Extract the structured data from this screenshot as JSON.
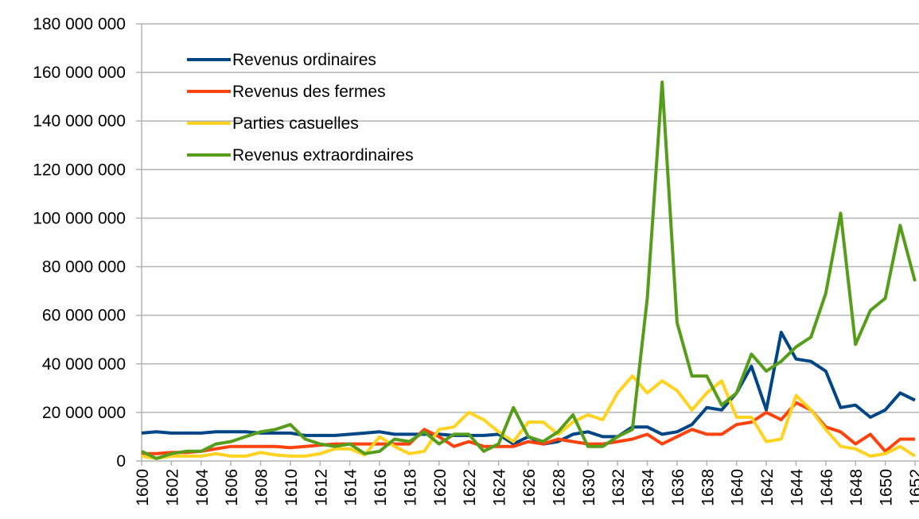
{
  "chart_data": {
    "type": "line",
    "x": [
      1600,
      1601,
      1602,
      1603,
      1604,
      1605,
      1606,
      1607,
      1608,
      1609,
      1610,
      1611,
      1612,
      1613,
      1614,
      1615,
      1616,
      1617,
      1618,
      1619,
      1620,
      1621,
      1622,
      1623,
      1624,
      1625,
      1626,
      1627,
      1628,
      1629,
      1630,
      1631,
      1632,
      1633,
      1634,
      1635,
      1636,
      1637,
      1638,
      1639,
      1640,
      1641,
      1642,
      1643,
      1644,
      1645,
      1646,
      1647,
      1648,
      1649,
      1650,
      1651,
      1652
    ],
    "xlim": [
      1600,
      1652
    ],
    "xticks": [
      1600,
      1602,
      1604,
      1606,
      1608,
      1610,
      1612,
      1614,
      1616,
      1618,
      1620,
      1622,
      1624,
      1626,
      1628,
      1630,
      1632,
      1634,
      1636,
      1638,
      1640,
      1642,
      1644,
      1646,
      1648,
      1650,
      1652
    ],
    "ylim": [
      0,
      180000000
    ],
    "yticks": [
      {
        "value": 0,
        "label": "0"
      },
      {
        "value": 20000000,
        "label": "20 000 000"
      },
      {
        "value": 40000000,
        "label": "40 000 000"
      },
      {
        "value": 60000000,
        "label": "60 000 000"
      },
      {
        "value": 80000000,
        "label": "80 000 000"
      },
      {
        "value": 100000000,
        "label": "100 000 000"
      },
      {
        "value": 120000000,
        "label": "120 000 000"
      },
      {
        "value": 140000000,
        "label": "140 000 000"
      },
      {
        "value": 160000000,
        "label": "160 000 000"
      },
      {
        "value": 180000000,
        "label": "180 000 000"
      }
    ],
    "grid": true,
    "legend": "upper-left",
    "series": [
      {
        "name": "Revenus ordinaires",
        "color": "#004586",
        "values": [
          11500000,
          12000000,
          11500000,
          11500000,
          11500000,
          12000000,
          12000000,
          12000000,
          11500000,
          11500000,
          11500000,
          10500000,
          10500000,
          10500000,
          11000000,
          11500000,
          12000000,
          11000000,
          11000000,
          11000000,
          11000000,
          10500000,
          10500000,
          10500000,
          11000000,
          7000000,
          10000000,
          7000000,
          8000000,
          11000000,
          12000000,
          10000000,
          10000000,
          14000000,
          14000000,
          11000000,
          12000000,
          15000000,
          22000000,
          21000000,
          28000000,
          39000000,
          21000000,
          53000000,
          42000000,
          41000000,
          37000000,
          22000000,
          23000000,
          18000000,
          21000000,
          28000000,
          25000000
        ]
      },
      {
        "name": "Revenus des fermes",
        "color": "#ff420e",
        "values": [
          3000000,
          3000000,
          3500000,
          3500000,
          4000000,
          5000000,
          6000000,
          6000000,
          6000000,
          6000000,
          5500000,
          6000000,
          6500000,
          7000000,
          7000000,
          7000000,
          7000000,
          7000000,
          7000000,
          13000000,
          10000000,
          6000000,
          8000000,
          6000000,
          6000000,
          6000000,
          8000000,
          7000000,
          9000000,
          8000000,
          7000000,
          7000000,
          8000000,
          9000000,
          11000000,
          7000000,
          10000000,
          13000000,
          11000000,
          11000000,
          15000000,
          16000000,
          20000000,
          17000000,
          24000000,
          21000000,
          14000000,
          12000000,
          7000000,
          11000000,
          4000000,
          9000000,
          9000000
        ]
      },
      {
        "name": "Parties casuelles",
        "color": "#ffd320",
        "values": [
          2000000,
          1000000,
          2000000,
          2000000,
          2000000,
          3000000,
          2000000,
          2000000,
          3500000,
          2500000,
          2000000,
          2000000,
          3000000,
          5000000,
          5000000,
          2500000,
          10000000,
          6000000,
          3000000,
          4000000,
          13000000,
          14000000,
          20000000,
          17000000,
          12000000,
          8000000,
          16000000,
          16000000,
          11000000,
          16000000,
          19000000,
          17000000,
          28000000,
          35000000,
          28000000,
          33000000,
          29000000,
          21000000,
          28000000,
          33000000,
          18000000,
          18000000,
          8000000,
          9000000,
          27000000,
          21000000,
          13000000,
          6000000,
          5000000,
          2000000,
          3000000,
          6000000,
          2000000
        ]
      },
      {
        "name": "Revenus extraordinaires",
        "color": "#579d1c",
        "values": [
          4000000,
          1000000,
          3000000,
          4000000,
          4000000,
          7000000,
          8000000,
          10000000,
          12000000,
          13000000,
          15000000,
          9000000,
          7000000,
          6000000,
          7000000,
          3000000,
          4000000,
          9000000,
          8000000,
          12000000,
          7000000,
          11000000,
          11000000,
          4000000,
          7000000,
          22000000,
          10000000,
          8000000,
          12000000,
          19000000,
          6000000,
          6000000,
          10000000,
          13000000,
          67000000,
          156000000,
          57000000,
          35000000,
          35000000,
          23000000,
          28000000,
          44000000,
          37000000,
          41000000,
          47000000,
          51000000,
          69000000,
          102000000,
          48000000,
          62000000,
          67000000,
          97000000,
          74000000
        ]
      }
    ]
  }
}
